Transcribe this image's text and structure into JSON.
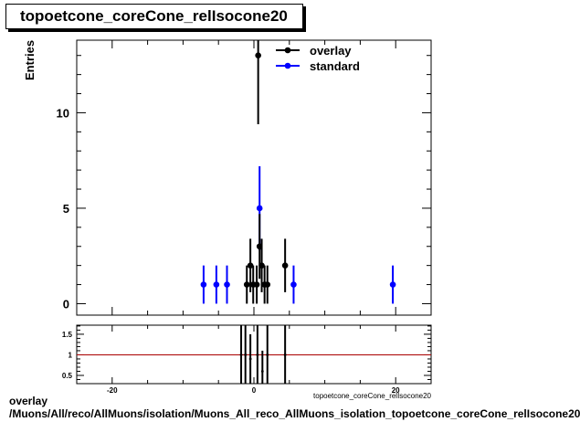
{
  "title": "topoetcone_coreCone_relIsocone20",
  "footer": {
    "line1": "overlay",
    "line2": "/Muons/All/reco/AllMuons/isolation/Muons_All_reco_AllMuons_isolation_topoetcone_coreCone_relIsocone20"
  },
  "colors": {
    "overlay": "#000000",
    "standard": "#0000ff",
    "ratio_line": "#aa0000"
  },
  "chart_data": [
    {
      "type": "scatter",
      "name": "main",
      "ylabel": "Entries",
      "xlabel": "topoetcone_coreCone_relIsocone20",
      "xlim": [
        -25,
        25
      ],
      "ylim": [
        -0.6,
        13.8
      ],
      "y_ticks": [
        0,
        5,
        10
      ],
      "x_ticks_labels": [],
      "legend": {
        "placement": "top-right",
        "entries": [
          "overlay",
          "standard"
        ]
      },
      "series": [
        {
          "name": "overlay",
          "points": [
            {
              "x": -1.0,
              "y": 1,
              "err": 1
            },
            {
              "x": -0.5,
              "y": 2,
              "err": 1.4
            },
            {
              "x": -0.1,
              "y": 1,
              "err": 1
            },
            {
              "x": 0.6,
              "y": 13,
              "err": 3.6
            },
            {
              "x": 0.8,
              "y": 3,
              "err": 1.7
            },
            {
              "x": 1.1,
              "y": 2,
              "err": 1.4
            },
            {
              "x": 0.4,
              "y": 1,
              "err": 1
            },
            {
              "x": 1.5,
              "y": 1,
              "err": 1
            },
            {
              "x": 1.9,
              "y": 1,
              "err": 1
            },
            {
              "x": 4.4,
              "y": 2,
              "err": 1.4
            }
          ]
        },
        {
          "name": "standard",
          "points": [
            {
              "x": -7.1,
              "y": 1,
              "err": 1
            },
            {
              "x": -5.3,
              "y": 1,
              "err": 1
            },
            {
              "x": -3.8,
              "y": 1,
              "err": 1
            },
            {
              "x": 0.8,
              "y": 5,
              "err": 2.2
            },
            {
              "x": 5.6,
              "y": 1,
              "err": 1
            },
            {
              "x": 19.6,
              "y": 1,
              "err": 1
            }
          ]
        }
      ]
    },
    {
      "type": "scatter",
      "name": "ratio",
      "xlim": [
        -25,
        25
      ],
      "ylim": [
        0.3,
        1.72
      ],
      "y_ticks": [
        0.5,
        1,
        1.5
      ],
      "x_ticks": [
        -20,
        0,
        20
      ],
      "reference_line": 1,
      "points": [
        {
          "x": -1.8,
          "y": 1,
          "err": 1
        },
        {
          "x": -1.2,
          "y": 1,
          "err": 1
        },
        {
          "x": -0.5,
          "y": 0.9,
          "err": 0.6
        },
        {
          "x": 0.5,
          "y": 1,
          "err": 1
        },
        {
          "x": 1.2,
          "y": 0.6,
          "err": 0.5
        },
        {
          "x": 1.9,
          "y": 1,
          "err": 1
        },
        {
          "x": 4.4,
          "y": 1,
          "err": 1
        }
      ]
    }
  ]
}
